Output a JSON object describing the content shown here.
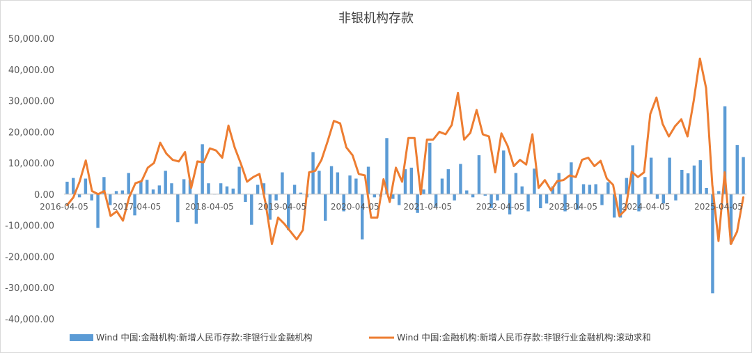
{
  "chart_data": {
    "type": "bar",
    "title": "非银机构存款",
    "y_ticks": [
      "50,000.00",
      "40,000.00",
      "30,000.00",
      "20,000.00",
      "10,000.00",
      "0.00",
      "-10,000.00",
      "-20,000.00",
      "-30,000.00",
      "-40,000.00"
    ],
    "ylim": [
      -40000,
      50000
    ],
    "grid": false,
    "legend_position": "bottom",
    "x_tick_labels": [
      "2016-04-05",
      "2017-04-05",
      "2018-04-05",
      "2019-04-05",
      "2020-04-05",
      "2021-04-05",
      "2022-04-05",
      "2023-04-05",
      "2024-04-05",
      "2025-04-05"
    ],
    "series": [
      {
        "name": "Wind 中国:金融机构:新增人民币存款:非银行业金融机构",
        "type": "bar",
        "color": "#5B9BD5",
        "values": [
          4000,
          5200,
          -1000,
          5000,
          -2000,
          -10800,
          5500,
          -3500,
          1000,
          1200,
          6800,
          -6800,
          4200,
          4600,
          1500,
          2800,
          7500,
          3500,
          -9000,
          4800,
          4500,
          -9500,
          16000,
          3500,
          0,
          3500,
          2500,
          1800,
          8800,
          -2500,
          -9800,
          3000,
          3500,
          -8200,
          -2000,
          7000,
          -11500,
          3000,
          500,
          -1000,
          13500,
          7500,
          -8500,
          9000,
          7000,
          -5500,
          6000,
          5000,
          -14500,
          8800,
          -1000,
          -800,
          18000,
          -1500,
          -3500,
          8000,
          8500,
          -6000,
          1500,
          16500,
          -4000,
          5000,
          8000,
          -2000,
          9700,
          1200,
          -1000,
          12500,
          -500,
          -4500,
          -2000,
          14000,
          -6500,
          6800,
          2500,
          -5500,
          8200,
          -4500,
          -3000,
          2500,
          6800,
          -5500,
          10200,
          -5000,
          3200,
          3000,
          3200,
          -3500,
          3800,
          -7500,
          -7500,
          5200,
          15700,
          -5500,
          5500,
          11700,
          -1500,
          -3000,
          11700,
          -2000,
          7800,
          6700,
          9200,
          10900,
          2000,
          -31800,
          1000,
          28200,
          -16000,
          15800,
          11900
        ]
      },
      {
        "name": "Wind 中国:金融机构:新增人民币存款:非银行业金融机构:滚动求和",
        "type": "line",
        "color": "#ED7D31",
        "values": [
          -3500,
          -1000,
          4000,
          10800,
          1000,
          0,
          1000,
          -7000,
          -5500,
          -8500,
          -1000,
          3500,
          4200,
          8500,
          10000,
          16500,
          13000,
          11000,
          10500,
          13500,
          2000,
          10500,
          10200,
          14700,
          14000,
          11700,
          22000,
          15000,
          9800,
          4000,
          5500,
          6500,
          -3000,
          -16000,
          -7500,
          -9500,
          -12000,
          -14500,
          -11500,
          7000,
          7500,
          11000,
          17000,
          23500,
          22700,
          15000,
          12500,
          6500,
          6000,
          -7500,
          -7500,
          4800,
          -2500,
          8500,
          4000,
          18000,
          18000,
          0,
          17500,
          17500,
          20000,
          19200,
          22200,
          32500,
          17500,
          19700,
          27000,
          19200,
          18500,
          7000,
          19500,
          15500,
          9000,
          11000,
          9500,
          19200,
          2000,
          4500,
          1200,
          4200,
          4500,
          6000,
          5500,
          11000,
          11700,
          9000,
          10700,
          5000,
          3000,
          -7000,
          -5000,
          7200,
          5500,
          7000,
          25700,
          31000,
          22500,
          18500,
          21800,
          24000,
          18500,
          30000,
          43500,
          34000,
          3000,
          -15000,
          7000,
          -16000,
          -12000,
          -1000
        ]
      }
    ]
  }
}
